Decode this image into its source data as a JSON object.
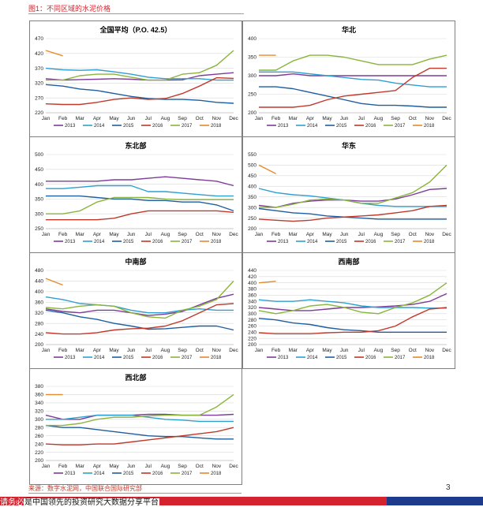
{
  "figure": {
    "title": "图1：不同区域的水泥价格",
    "source": "来源：数字水泥网，中国联合国际研究部",
    "page_number": "3"
  },
  "footer": {
    "prefix": "请务必",
    "text": "是中国领先的投资研究大数据分享平台"
  },
  "series_colors": {
    "2013": "#7d3c98",
    "2014": "#2e9fd0",
    "2015": "#1f5e9e",
    "2016": "#c0392b",
    "2017": "#8ab43b",
    "2018": "#e8892b"
  },
  "chart_data": [
    {
      "type": "line",
      "title": "全国平均（P.O. 42.5）",
      "categories": [
        "Jan",
        "Feb",
        "Mar",
        "Apr",
        "May",
        "Jun",
        "Jul",
        "Aug",
        "Sep",
        "Oct",
        "Nov",
        "Dec"
      ],
      "x_tick_labels": [
        "Jan",
        "Feb",
        "Mar",
        "Apr",
        "May",
        "Jun",
        "Jul",
        "Aug",
        "Sep",
        "Oct",
        "Nov",
        "Dec"
      ],
      "y_ticks": [
        220,
        270,
        320,
        370,
        420,
        470
      ],
      "ylim": [
        220,
        470
      ],
      "legend": "bottom",
      "series": [
        {
          "name": "2013",
          "values": [
            335,
            330,
            332,
            333,
            335,
            333,
            330,
            330,
            331,
            345,
            350,
            355
          ]
        },
        {
          "name": "2014",
          "values": [
            370,
            365,
            363,
            365,
            358,
            350,
            340,
            335,
            335,
            335,
            330,
            330
          ]
        },
        {
          "name": "2015",
          "values": [
            315,
            310,
            300,
            295,
            285,
            275,
            268,
            265,
            265,
            262,
            255,
            252
          ]
        },
        {
          "name": "2016",
          "values": [
            250,
            248,
            248,
            255,
            265,
            270,
            265,
            268,
            285,
            310,
            338,
            336
          ]
        },
        {
          "name": "2017",
          "values": [
            330,
            330,
            345,
            350,
            350,
            340,
            330,
            330,
            350,
            355,
            380,
            430
          ]
        },
        {
          "name": "2018",
          "values": [
            430,
            412,
            null,
            null,
            null,
            null,
            null,
            null,
            null,
            null,
            null,
            null
          ]
        }
      ]
    },
    {
      "type": "line",
      "title": "华北",
      "categories": [
        "Jan",
        "Feb",
        "Mar",
        "Apr",
        "May",
        "Jun",
        "Jul",
        "Aug",
        "Sep",
        "Oct",
        "Nov",
        "Dec"
      ],
      "x_tick_labels": [
        "Jan",
        "Feb",
        "Mar",
        "Apr",
        "May",
        "Jun",
        "Jul",
        "Aug",
        "Sep",
        "Oct",
        "Nov",
        "Dec"
      ],
      "y_ticks": [
        200,
        250,
        300,
        350,
        400
      ],
      "ylim": [
        200,
        400
      ],
      "legend": "bottom",
      "series": [
        {
          "name": "2013",
          "values": [
            300,
            300,
            305,
            300,
            300,
            300,
            300,
            300,
            300,
            300,
            300,
            300
          ]
        },
        {
          "name": "2014",
          "values": [
            310,
            310,
            310,
            305,
            300,
            295,
            290,
            288,
            280,
            275,
            270,
            270
          ]
        },
        {
          "name": "2015",
          "values": [
            270,
            270,
            265,
            255,
            245,
            235,
            225,
            220,
            220,
            218,
            215,
            215
          ]
        },
        {
          "name": "2016",
          "values": [
            215,
            215,
            215,
            220,
            235,
            245,
            250,
            255,
            260,
            295,
            320,
            320
          ]
        },
        {
          "name": "2017",
          "values": [
            315,
            315,
            340,
            355,
            355,
            350,
            340,
            330,
            330,
            330,
            345,
            355
          ]
        },
        {
          "name": "2018",
          "values": [
            355,
            355,
            null,
            null,
            null,
            null,
            null,
            null,
            null,
            null,
            null,
            null
          ]
        }
      ]
    },
    {
      "type": "line",
      "title": "东北部",
      "categories": [
        "Jan",
        "Feb",
        "Mar",
        "Apr",
        "May",
        "Jun",
        "Jul",
        "Aug",
        "Sep",
        "Oct",
        "Nov",
        "Dec"
      ],
      "x_tick_labels": [
        "Jan",
        "Feb",
        "Mar",
        "Apr",
        "May",
        "Jun",
        "Jul",
        "Aug",
        "Sep",
        "Oct",
        "Nov",
        "Dec"
      ],
      "y_ticks": [
        250,
        300,
        350,
        400,
        450,
        500
      ],
      "ylim": [
        250,
        500
      ],
      "legend": "bottom",
      "series": [
        {
          "name": "2013",
          "values": [
            410,
            410,
            410,
            410,
            415,
            415,
            420,
            425,
            420,
            415,
            410,
            395
          ]
        },
        {
          "name": "2014",
          "values": [
            385,
            385,
            390,
            395,
            395,
            395,
            375,
            375,
            370,
            365,
            360,
            360
          ]
        },
        {
          "name": "2015",
          "values": [
            360,
            360,
            360,
            355,
            350,
            350,
            345,
            345,
            340,
            340,
            330,
            310
          ]
        },
        {
          "name": "2016",
          "values": [
            280,
            280,
            280,
            280,
            285,
            300,
            310,
            310,
            310,
            310,
            310,
            305
          ]
        },
        {
          "name": "2017",
          "values": [
            300,
            300,
            310,
            340,
            355,
            355,
            355,
            350,
            348,
            348,
            348,
            348
          ]
        },
        {
          "name": "2018",
          "values": [
            335,
            null,
            null,
            null,
            null,
            null,
            null,
            null,
            null,
            null,
            null,
            null
          ]
        }
      ]
    },
    {
      "type": "line",
      "title": "华东",
      "categories": [
        "Jan",
        "Feb",
        "Mar",
        "Apr",
        "May",
        "Jun",
        "Jul",
        "Aug",
        "Sep",
        "Oct",
        "Nov",
        "Dec"
      ],
      "x_tick_labels": [
        "Jan",
        "Feb",
        "Mar",
        "Apr",
        "May",
        "Jun",
        "Jul",
        "Aug",
        "Sep",
        "Oct",
        "Nov",
        "Dec"
      ],
      "y_ticks": [
        200,
        250,
        300,
        350,
        400,
        450,
        500,
        550
      ],
      "ylim": [
        200,
        550
      ],
      "legend": "bottom",
      "series": [
        {
          "name": "2013",
          "values": [
            310,
            300,
            320,
            330,
            335,
            335,
            330,
            330,
            340,
            360,
            385,
            390
          ]
        },
        {
          "name": "2014",
          "values": [
            390,
            370,
            360,
            355,
            345,
            335,
            320,
            310,
            305,
            305,
            305,
            305
          ]
        },
        {
          "name": "2015",
          "values": [
            295,
            285,
            275,
            270,
            260,
            255,
            250,
            245,
            245,
            245,
            245,
            245
          ]
        },
        {
          "name": "2016",
          "values": [
            245,
            240,
            235,
            240,
            250,
            255,
            260,
            265,
            275,
            285,
            305,
            310
          ]
        },
        {
          "name": "2017",
          "values": [
            300,
            300,
            315,
            335,
            340,
            335,
            320,
            320,
            345,
            370,
            420,
            500
          ]
        },
        {
          "name": "2018",
          "values": [
            500,
            460,
            null,
            null,
            null,
            null,
            null,
            null,
            null,
            null,
            null,
            null
          ]
        }
      ]
    },
    {
      "type": "line",
      "title": "中南部",
      "categories": [
        "Jan",
        "Feb",
        "Mar",
        "Apr",
        "May",
        "Jun",
        "Jul",
        "Aug",
        "Sep",
        "Oct",
        "Nov",
        "Dec"
      ],
      "x_tick_labels": [
        "Jan",
        "Feb",
        "Mar",
        "Apr",
        "May",
        "Jun",
        "Jul",
        "Aug",
        "Sep",
        "Oct",
        "Nov",
        "Dec"
      ],
      "y_ticks": [
        200,
        240,
        280,
        320,
        360,
        400,
        440,
        480
      ],
      "ylim": [
        200,
        480
      ],
      "legend": "bottom",
      "series": [
        {
          "name": "2013",
          "values": [
            335,
            325,
            320,
            330,
            330,
            320,
            310,
            315,
            325,
            350,
            375,
            390
          ]
        },
        {
          "name": "2014",
          "values": [
            380,
            370,
            355,
            350,
            345,
            330,
            320,
            320,
            330,
            335,
            330,
            330
          ]
        },
        {
          "name": "2015",
          "values": [
            330,
            320,
            305,
            295,
            280,
            270,
            258,
            260,
            265,
            270,
            270,
            255
          ]
        },
        {
          "name": "2016",
          "values": [
            245,
            240,
            240,
            245,
            255,
            260,
            262,
            270,
            290,
            320,
            350,
            355
          ]
        },
        {
          "name": "2017",
          "values": [
            340,
            335,
            345,
            350,
            345,
            320,
            305,
            300,
            330,
            345,
            370,
            440
          ]
        },
        {
          "name": "2018",
          "values": [
            450,
            425,
            null,
            null,
            null,
            null,
            null,
            null,
            null,
            null,
            null,
            null
          ]
        }
      ]
    },
    {
      "type": "line",
      "title": "西南部",
      "categories": [
        "Jan",
        "Feb",
        "Mar",
        "Apr",
        "May",
        "Jun",
        "Jul",
        "Aug",
        "Sep",
        "Oct",
        "Nov",
        "Dec"
      ],
      "x_tick_labels": [
        "Jan",
        "Feb",
        "Mar",
        "Apr",
        "May",
        "Jun",
        "Jul",
        "Aug",
        "Sep",
        "Oct",
        "Nov",
        "Dec"
      ],
      "y_ticks": [
        200,
        220,
        240,
        260,
        280,
        300,
        320,
        340,
        360,
        380,
        400,
        420,
        440
      ],
      "ylim": [
        200,
        440
      ],
      "legend": "bottom",
      "series": [
        {
          "name": "2013",
          "values": [
            320,
            315,
            310,
            310,
            315,
            320,
            320,
            322,
            325,
            330,
            340,
            365
          ]
        },
        {
          "name": "2014",
          "values": [
            345,
            340,
            340,
            345,
            340,
            335,
            325,
            320,
            320,
            320,
            318,
            318
          ]
        },
        {
          "name": "2015",
          "values": [
            285,
            280,
            270,
            265,
            255,
            248,
            245,
            240,
            240,
            240,
            240,
            240
          ]
        },
        {
          "name": "2016",
          "values": [
            238,
            235,
            235,
            235,
            238,
            240,
            240,
            245,
            260,
            290,
            315,
            320
          ]
        },
        {
          "name": "2017",
          "values": [
            310,
            300,
            310,
            325,
            330,
            320,
            305,
            300,
            320,
            335,
            360,
            400
          ]
        },
        {
          "name": "2018",
          "values": [
            400,
            405,
            null,
            null,
            null,
            null,
            null,
            null,
            null,
            null,
            null,
            null
          ]
        }
      ]
    },
    {
      "type": "line",
      "title": "西北部",
      "categories": [
        "Jan",
        "Feb",
        "Mar",
        "Apr",
        "May",
        "Jun",
        "Jul",
        "Aug",
        "Sep",
        "Oct",
        "Nov",
        "Dec"
      ],
      "x_tick_labels": [
        "Jan",
        "Feb",
        "Mar",
        "Apr",
        "May",
        "Jun",
        "Jul",
        "Aug",
        "Sep",
        "Oct",
        "Nov",
        "Dec"
      ],
      "y_ticks": [
        200,
        220,
        240,
        260,
        280,
        300,
        320,
        340,
        360,
        380
      ],
      "ylim": [
        200,
        380
      ],
      "legend": "bottom",
      "series": [
        {
          "name": "2013",
          "values": [
            310,
            300,
            300,
            310,
            310,
            310,
            312,
            312,
            310,
            310,
            310,
            312
          ]
        },
        {
          "name": "2014",
          "values": [
            300,
            300,
            305,
            310,
            310,
            310,
            305,
            300,
            298,
            295,
            295,
            295
          ]
        },
        {
          "name": "2015",
          "values": [
            285,
            280,
            280,
            275,
            270,
            265,
            260,
            258,
            258,
            255,
            252,
            252
          ]
        },
        {
          "name": "2016",
          "values": [
            240,
            238,
            238,
            240,
            240,
            245,
            250,
            255,
            260,
            265,
            270,
            280
          ]
        },
        {
          "name": "2017",
          "values": [
            285,
            285,
            290,
            300,
            305,
            305,
            308,
            310,
            310,
            310,
            330,
            360
          ]
        },
        {
          "name": "2018",
          "values": [
            360,
            360,
            null,
            null,
            null,
            null,
            null,
            null,
            null,
            null,
            null,
            null
          ]
        }
      ]
    }
  ]
}
